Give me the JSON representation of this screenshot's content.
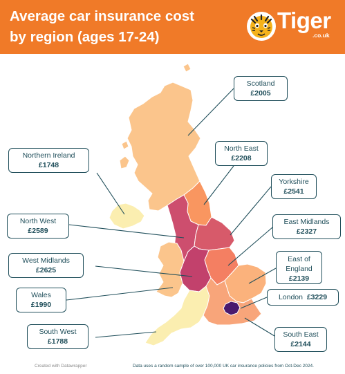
{
  "title": {
    "line1": "Average car insurance cost",
    "line2": "by region (ages 17-24)"
  },
  "logo": {
    "word": "Tiger",
    "sub": ".co.uk",
    "icon": "tiger-face-icon"
  },
  "colors": {
    "header": "#f07a28",
    "label_border": "#1f4e5a",
    "scale_low": "#fbeeb0",
    "scale_mid": "#f6a766",
    "scale_high": "#b8326a",
    "scale_top": "#4a1a6e"
  },
  "regions": [
    {
      "name": "Scotland",
      "cost": "£2005"
    },
    {
      "name": "North East",
      "cost": "£2208"
    },
    {
      "name": "Northern Ireland",
      "cost": "£1748"
    },
    {
      "name": "Yorkshire",
      "cost": "£2541"
    },
    {
      "name": "North West",
      "cost": "£2589"
    },
    {
      "name": "East Midlands",
      "cost": "£2327"
    },
    {
      "name": "West Midlands",
      "cost": "£2625"
    },
    {
      "name": "East of England",
      "cost": "£2139"
    },
    {
      "name": "Wales",
      "cost": "£1990"
    },
    {
      "name": "London",
      "cost": "£3229"
    },
    {
      "name": "South West",
      "cost": "£1788"
    },
    {
      "name": "South East",
      "cost": "£2144"
    }
  ],
  "footer": {
    "credit": "Created with Datawrapper",
    "note": "Data uses a random sample of over 100,000 UK car insurance policies from Oct-Dec 2024."
  }
}
